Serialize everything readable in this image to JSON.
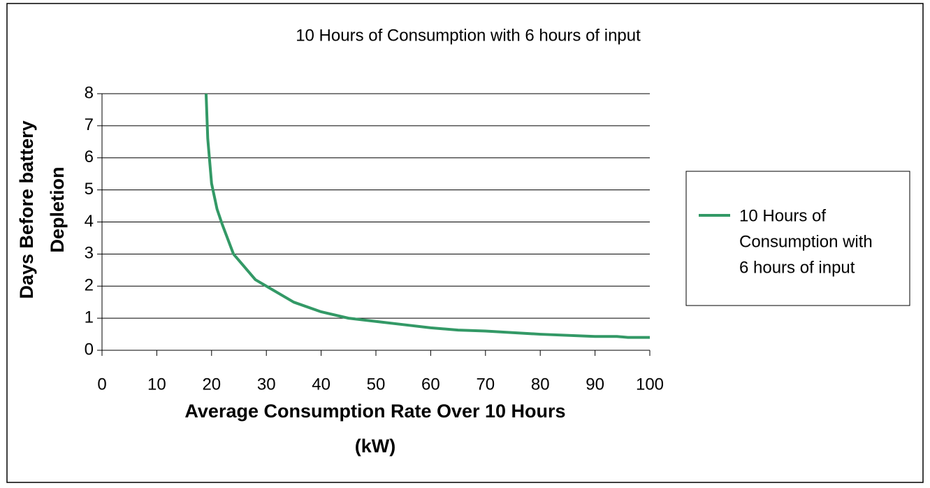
{
  "chart_data": {
    "type": "line",
    "title": "10 Hours of Consumption with 6 hours of input",
    "xlabel": [
      "Average Consumption Rate Over 10 Hours",
      "(kW)"
    ],
    "ylabel": [
      "Days Before battery",
      "Depletion"
    ],
    "x": [
      19,
      19.3,
      20,
      21,
      22,
      24,
      26,
      28,
      30,
      35,
      40,
      45,
      50,
      55,
      60,
      65,
      70,
      80,
      90,
      94,
      96,
      100
    ],
    "series": [
      {
        "name": "10 Hours of Consumption with 6 hours of input",
        "legend_lines": [
          "10 Hours of",
          "Consumption with",
          "6 hours of input"
        ],
        "color": "#339966",
        "values": [
          8,
          6.6,
          5.2,
          4.4,
          3.9,
          3.0,
          2.6,
          2.2,
          2.0,
          1.5,
          1.2,
          1.0,
          0.9,
          0.8,
          0.7,
          0.63,
          0.6,
          0.5,
          0.43,
          0.43,
          0.4,
          0.4
        ]
      }
    ],
    "xlim": [
      0,
      100
    ],
    "xticks": [
      0,
      10,
      20,
      30,
      40,
      50,
      60,
      70,
      80,
      90,
      100
    ],
    "ylim": [
      0,
      8
    ],
    "yticks": [
      0,
      1,
      2,
      3,
      4,
      5,
      6,
      7,
      8
    ],
    "grid": true,
    "legend": "right"
  }
}
